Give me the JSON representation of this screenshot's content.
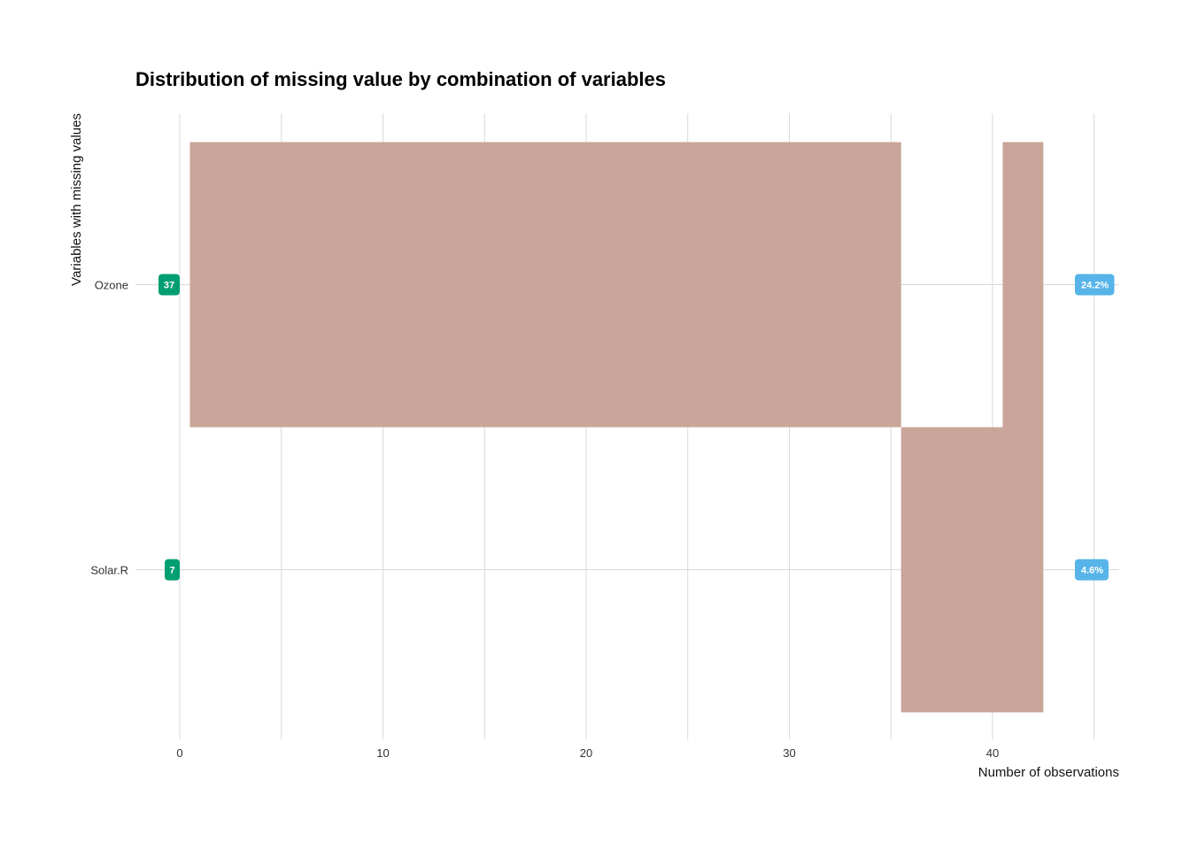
{
  "chart_data": {
    "type": "bar",
    "title": "Distribution of missing value by combination of variables",
    "xlabel": "Number of observations",
    "ylabel": "Variables with missing values",
    "x_ticks": [
      0,
      10,
      20,
      30,
      40
    ],
    "xlim": [
      0,
      45
    ],
    "categories": [
      "Ozone",
      "Solar.R"
    ],
    "grid": true,
    "combinations": [
      {
        "x_start": 0.5,
        "x_end": 35.5,
        "variables": [
          "Ozone"
        ],
        "count": 35
      },
      {
        "x_start": 35.5,
        "x_end": 40.5,
        "variables": [
          "Solar.R"
        ],
        "count": 5
      },
      {
        "x_start": 40.5,
        "x_end": 42.5,
        "variables": [
          "Ozone",
          "Solar.R"
        ],
        "count": 2
      }
    ],
    "missing_counts": [
      {
        "variable": "Ozone",
        "count": "37",
        "percent": "24.2%"
      },
      {
        "variable": "Solar.R",
        "count": "7",
        "percent": "4.6%"
      }
    ],
    "colors": {
      "bar": "#c9a59a",
      "count_badge": "#009e73",
      "percent_badge": "#56b4e9",
      "grid": "#d9d9d9"
    }
  }
}
